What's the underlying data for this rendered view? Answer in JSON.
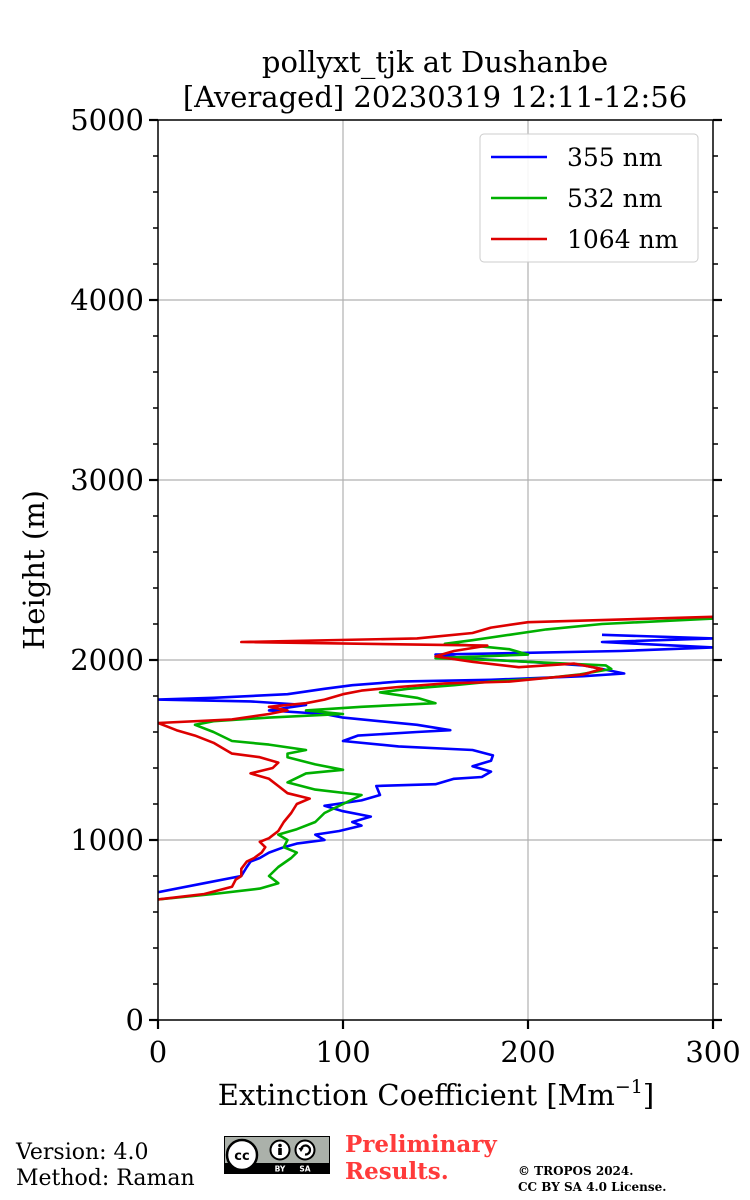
{
  "chart_data": {
    "type": "line",
    "title_line1": "pollyxt_tjk at Dushanbe",
    "title_line2": "[Averaged] 20230319 12:11-12:56",
    "xlabel": "Extinction Coefficient [Mm",
    "xlabel_sup": "−1",
    "xlabel_end": "]",
    "ylabel": "Height (m)",
    "xlim": [
      0,
      300
    ],
    "ylim": [
      0,
      5000
    ],
    "x_ticks": [
      0,
      100,
      200,
      300
    ],
    "y_ticks": [
      0,
      1000,
      2000,
      3000,
      4000,
      5000
    ],
    "x_tick_labels": [
      "0",
      "100",
      "200",
      "300"
    ],
    "y_tick_labels": [
      "0",
      "1000",
      "2000",
      "3000",
      "4000",
      "5000"
    ],
    "grid": true,
    "legend_position": "top-right",
    "series": [
      {
        "name": "355 nm",
        "color": "#0000ff",
        "points": [
          [
            0,
            710
          ],
          [
            25,
            760
          ],
          [
            45,
            800
          ],
          [
            48,
            850
          ],
          [
            50,
            880
          ],
          [
            55,
            900
          ],
          [
            60,
            930
          ],
          [
            68,
            960
          ],
          [
            75,
            980
          ],
          [
            90,
            1000
          ],
          [
            85,
            1030
          ],
          [
            98,
            1050
          ],
          [
            110,
            1080
          ],
          [
            105,
            1100
          ],
          [
            115,
            1130
          ],
          [
            100,
            1160
          ],
          [
            90,
            1190
          ],
          [
            110,
            1220
          ],
          [
            120,
            1250
          ],
          [
            118,
            1300
          ],
          [
            150,
            1310
          ],
          [
            160,
            1340
          ],
          [
            175,
            1350
          ],
          [
            180,
            1380
          ],
          [
            170,
            1410
          ],
          [
            180,
            1440
          ],
          [
            181,
            1470
          ],
          [
            170,
            1500
          ],
          [
            130,
            1520
          ],
          [
            100,
            1550
          ],
          [
            108,
            1580
          ],
          [
            140,
            1600
          ],
          [
            158,
            1610
          ],
          [
            140,
            1640
          ],
          [
            100,
            1680
          ],
          [
            90,
            1700
          ],
          [
            60,
            1720
          ],
          [
            80,
            1750
          ],
          [
            50,
            1770
          ],
          [
            0,
            1780
          ],
          [
            30,
            1790
          ],
          [
            70,
            1810
          ],
          [
            90,
            1840
          ],
          [
            105,
            1860
          ],
          [
            130,
            1880
          ],
          [
            180,
            1890
          ],
          [
            230,
            1910
          ],
          [
            252,
            1925
          ],
          [
            240,
            1950
          ],
          [
            230,
            1970
          ],
          [
            200,
            1990
          ],
          [
            165,
            2010
          ],
          [
            150,
            2030
          ],
          [
            250,
            2050
          ],
          [
            300,
            2070
          ],
          [
            260,
            2090
          ],
          [
            240,
            2100
          ],
          [
            300,
            2120
          ],
          [
            240,
            2140
          ]
        ]
      },
      {
        "name": "532 nm",
        "color": "#00b000",
        "points": [
          [
            0,
            670
          ],
          [
            30,
            700
          ],
          [
            55,
            730
          ],
          [
            65,
            760
          ],
          [
            60,
            800
          ],
          [
            65,
            850
          ],
          [
            72,
            900
          ],
          [
            75,
            930
          ],
          [
            68,
            960
          ],
          [
            70,
            1000
          ],
          [
            65,
            1030
          ],
          [
            75,
            1060
          ],
          [
            85,
            1100
          ],
          [
            90,
            1150
          ],
          [
            100,
            1200
          ],
          [
            110,
            1250
          ],
          [
            85,
            1280
          ],
          [
            70,
            1320
          ],
          [
            80,
            1370
          ],
          [
            100,
            1390
          ],
          [
            85,
            1420
          ],
          [
            70,
            1460
          ],
          [
            70,
            1480
          ],
          [
            80,
            1500
          ],
          [
            60,
            1530
          ],
          [
            40,
            1550
          ],
          [
            30,
            1600
          ],
          [
            20,
            1640
          ],
          [
            30,
            1660
          ],
          [
            60,
            1680
          ],
          [
            100,
            1700
          ],
          [
            80,
            1720
          ],
          [
            110,
            1740
          ],
          [
            150,
            1760
          ],
          [
            140,
            1790
          ],
          [
            120,
            1820
          ],
          [
            135,
            1840
          ],
          [
            160,
            1860
          ],
          [
            180,
            1880
          ],
          [
            210,
            1900
          ],
          [
            228,
            1920
          ],
          [
            245,
            1950
          ],
          [
            242,
            1970
          ],
          [
            220,
            1980
          ],
          [
            200,
            1990
          ],
          [
            180,
            2000
          ],
          [
            150,
            2010
          ],
          [
            200,
            2030
          ],
          [
            190,
            2060
          ],
          [
            170,
            2080
          ],
          [
            155,
            2090
          ],
          [
            170,
            2110
          ],
          [
            190,
            2140
          ],
          [
            210,
            2170
          ],
          [
            240,
            2200
          ],
          [
            300,
            2230
          ]
        ]
      },
      {
        "name": "1064 nm",
        "color": "#dd0000",
        "points": [
          [
            0,
            670
          ],
          [
            25,
            700
          ],
          [
            40,
            740
          ],
          [
            42,
            780
          ],
          [
            45,
            800
          ],
          [
            45,
            840
          ],
          [
            48,
            880
          ],
          [
            52,
            900
          ],
          [
            56,
            930
          ],
          [
            58,
            960
          ],
          [
            55,
            990
          ],
          [
            60,
            1010
          ],
          [
            65,
            1050
          ],
          [
            68,
            1100
          ],
          [
            72,
            1150
          ],
          [
            75,
            1200
          ],
          [
            82,
            1230
          ],
          [
            70,
            1260
          ],
          [
            65,
            1300
          ],
          [
            60,
            1340
          ],
          [
            50,
            1370
          ],
          [
            62,
            1400
          ],
          [
            65,
            1430
          ],
          [
            55,
            1460
          ],
          [
            40,
            1480
          ],
          [
            35,
            1510
          ],
          [
            30,
            1540
          ],
          [
            20,
            1580
          ],
          [
            10,
            1610
          ],
          [
            5,
            1630
          ],
          [
            0,
            1650
          ],
          [
            40,
            1670
          ],
          [
            60,
            1700
          ],
          [
            70,
            1720
          ],
          [
            60,
            1740
          ],
          [
            80,
            1760
          ],
          [
            90,
            1780
          ],
          [
            100,
            1810
          ],
          [
            110,
            1830
          ],
          [
            130,
            1850
          ],
          [
            155,
            1870
          ],
          [
            190,
            1880
          ],
          [
            210,
            1900
          ],
          [
            230,
            1920
          ],
          [
            240,
            1950
          ],
          [
            225,
            1980
          ],
          [
            195,
            1960
          ],
          [
            170,
            1990
          ],
          [
            150,
            2020
          ],
          [
            160,
            2050
          ],
          [
            178,
            2080
          ],
          [
            45,
            2100
          ],
          [
            140,
            2120
          ],
          [
            170,
            2150
          ],
          [
            180,
            2180
          ],
          [
            200,
            2210
          ],
          [
            300,
            2240
          ]
        ]
      }
    ]
  },
  "footer": {
    "version": "Version: 4.0",
    "method": "Method: Raman",
    "prelim_line1": "Preliminary",
    "prelim_line2": "Results.",
    "copyright_line1": "© TROPOS 2024.",
    "copyright_line2": "CC BY SA 4.0 License.",
    "badge_by": "BY",
    "badge_sa": "SA"
  },
  "colors": {
    "grid": "#b0b0b0",
    "axis": "#000000",
    "preliminary": "#ff3b3b"
  }
}
